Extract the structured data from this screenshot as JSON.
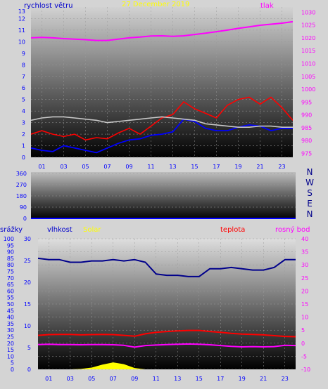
{
  "header": {
    "wind_label": "rychlost větru",
    "date": "27 December 2019",
    "pressure_label": "tlak"
  },
  "direction_labels": [
    "N",
    "W",
    "S",
    "E",
    "N"
  ],
  "bottom_labels": {
    "rain": "srážky",
    "humidity": "vlhkost",
    "solar": "Solar",
    "temp": "teplota",
    "dew": "rosný bod"
  },
  "colors": {
    "wind": "#ff0000",
    "gust": "#0000ff",
    "pressure": "#ff00ff",
    "grey_series": "#c8c8c8",
    "humidity": "#00008b",
    "temperature": "#ff0000",
    "dew_point": "#ff00ff",
    "solar": "#ffff00",
    "axis_blue": "#0000ff"
  },
  "chart_data": [
    {
      "type": "line",
      "x_ticks": [
        "01",
        "03",
        "05",
        "07",
        "09",
        "11",
        "13",
        "15",
        "17",
        "19",
        "21",
        "23"
      ],
      "y_left_ticks": [
        0,
        1,
        2,
        3,
        4,
        5,
        6,
        7,
        8,
        9,
        10,
        11,
        12
      ],
      "y_left_extra_label": "13",
      "y_right_ticks": [
        975,
        980,
        985,
        990,
        995,
        1000,
        1005,
        1010,
        1015,
        1020,
        1025,
        1030
      ],
      "ylim_left": [
        0,
        13
      ],
      "ylim_right": [
        973.5,
        1032
      ],
      "x": [
        0,
        1,
        2,
        3,
        4,
        5,
        6,
        7,
        8,
        9,
        10,
        11,
        12,
        13,
        14,
        15,
        16,
        17,
        18,
        19,
        20,
        21,
        22,
        23,
        24
      ],
      "series": [
        {
          "axis": "right",
          "values": [
            1020,
            1020.2,
            1020,
            1019.7,
            1019.5,
            1019.3,
            1019,
            1019,
            1019.5,
            1020,
            1020.3,
            1020.7,
            1020.8,
            1020.6,
            1020.8,
            1021.3,
            1021.8,
            1022.4,
            1023,
            1023.7,
            1024.3,
            1024.9,
            1025.3,
            1025.7,
            1026.3
          ]
        },
        {
          "axis": "left",
          "values": [
            2,
            2.3,
            2,
            1.8,
            2,
            1.5,
            1.7,
            1.6,
            2.1,
            2.5,
            2,
            2.7,
            3.4,
            3.7,
            4.8,
            4.2,
            3.8,
            3.4,
            4.5,
            5,
            5.2,
            4.6,
            5.2,
            4.3,
            3.2
          ]
        },
        {
          "axis": "left",
          "values": [
            0.8,
            0.6,
            0.5,
            1,
            0.8,
            0.6,
            0.4,
            0.8,
            1.2,
            1.5,
            1.6,
            1.9,
            2,
            2.2,
            3.3,
            3.1,
            2.5,
            2.3,
            2.3,
            2.6,
            2.8,
            2.7,
            2.3,
            2.5,
            2.5
          ]
        },
        {
          "axis": "left",
          "values": [
            3.2,
            3.4,
            3.5,
            3.5,
            3.4,
            3.3,
            3.2,
            3,
            3.1,
            3.2,
            3.3,
            3.4,
            3.5,
            3.4,
            3.3,
            3.2,
            2.9,
            2.8,
            2.7,
            2.6,
            2.6,
            2.7,
            2.7,
            2.6,
            2.6
          ]
        }
      ]
    },
    {
      "type": "scatter",
      "y_ticks": [
        0,
        90,
        180,
        270,
        360
      ],
      "ylim": [
        0,
        360
      ],
      "values": []
    },
    {
      "type": "line",
      "x_ticks": [
        "01",
        "03",
        "05",
        "07",
        "09",
        "11",
        "13",
        "15",
        "17",
        "19",
        "21",
        "23"
      ],
      "y_rain_ticks": [
        0,
        5,
        10,
        15,
        20,
        25,
        30,
        35,
        40,
        45,
        50,
        55,
        60,
        65,
        70,
        75,
        80,
        85,
        90,
        95,
        100
      ],
      "y_rain_lim": [
        0,
        100
      ],
      "y_small_ticks": [
        0,
        5,
        10,
        15,
        20,
        25,
        30
      ],
      "y_small_lim": [
        0,
        30
      ],
      "y_temp_ticks": [
        -10,
        -5,
        0,
        5,
        10,
        15,
        20,
        25,
        30,
        35,
        40
      ],
      "y_temp_lim": [
        -10,
        40
      ],
      "x": [
        0,
        1,
        2,
        3,
        4,
        5,
        6,
        7,
        8,
        9,
        10,
        11,
        12,
        13,
        14,
        15,
        16,
        17,
        18,
        19,
        20,
        21,
        22,
        23,
        24
      ],
      "series": [
        {
          "axis": "rain",
          "values": [
            85,
            84,
            84,
            82,
            82,
            83,
            83,
            84,
            83,
            84,
            82,
            73,
            72,
            72,
            71,
            71,
            77,
            77,
            78,
            77,
            76,
            76,
            78,
            84,
            84
          ]
        },
        {
          "axis": "temp",
          "values": [
            3,
            3.3,
            3.4,
            3.4,
            3.2,
            3.3,
            3.4,
            3.3,
            3,
            2.7,
            3.6,
            4.2,
            4.5,
            4.7,
            4.9,
            4.9,
            4.5,
            4.2,
            3.8,
            3.5,
            3.4,
            3.2,
            2.9,
            2.6,
            2.5
          ]
        },
        {
          "axis": "temp",
          "values": [
            -0.5,
            -0.4,
            -0.5,
            -0.5,
            -0.6,
            -0.5,
            -0.5,
            -0.6,
            -0.8,
            -1.5,
            -0.9,
            -0.7,
            -0.5,
            -0.4,
            -0.3,
            -0.4,
            -0.6,
            -0.9,
            -1.2,
            -1.4,
            -1.3,
            -1.4,
            -1.3,
            -0.8,
            -0.9
          ]
        },
        {
          "axis": "small",
          "values": [
            0,
            0,
            0,
            0,
            0.1,
            0.4,
            1.1,
            1.6,
            1.2,
            0.3,
            0,
            0,
            0,
            0,
            0,
            0,
            0,
            0,
            0,
            0,
            0,
            0,
            0,
            0,
            0
          ]
        }
      ]
    }
  ]
}
